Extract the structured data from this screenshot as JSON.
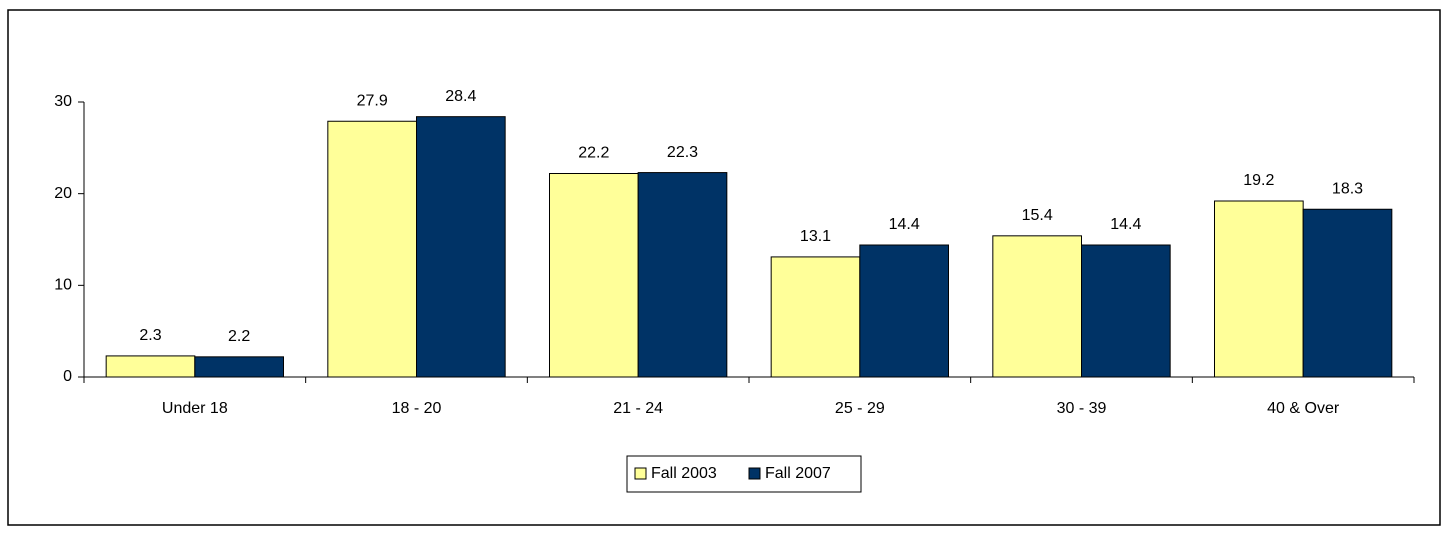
{
  "chart_data": {
    "type": "bar",
    "categories": [
      "Under 18",
      "18 - 20",
      "21 - 24",
      "25 - 29",
      "30 - 39",
      "40 & Over"
    ],
    "series": [
      {
        "name": "Fall 2003",
        "color": "#ffff99",
        "values": [
          2.3,
          27.9,
          22.2,
          13.1,
          15.4,
          19.2
        ]
      },
      {
        "name": "Fall 2007",
        "color": "#003366",
        "values": [
          2.2,
          28.4,
          22.3,
          14.4,
          14.4,
          18.3
        ]
      }
    ],
    "ylim": [
      0,
      30
    ],
    "yticks": [
      0,
      10,
      20,
      30
    ],
    "legend": "bottom"
  }
}
